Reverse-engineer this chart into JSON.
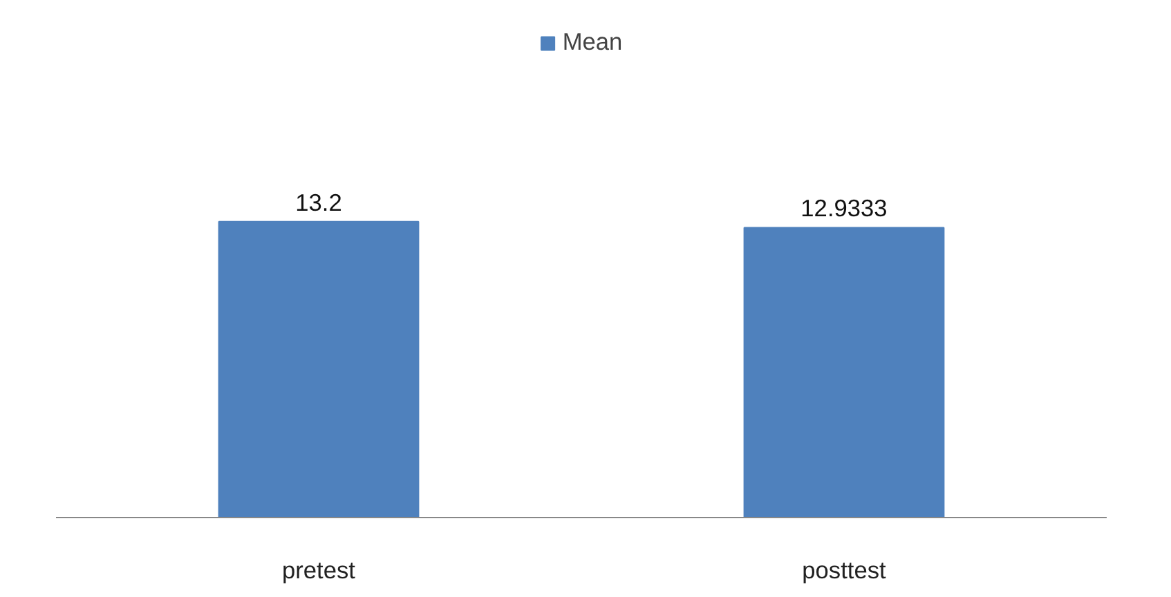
{
  "chart_data": {
    "type": "bar",
    "categories": [
      "pretest",
      "posttest"
    ],
    "series": [
      {
        "name": "Mean",
        "color": "#4f81bd",
        "values": [
          13.2,
          12.9333
        ]
      }
    ],
    "data_labels": true,
    "legend": "top",
    "tick_labels": "x"
  }
}
